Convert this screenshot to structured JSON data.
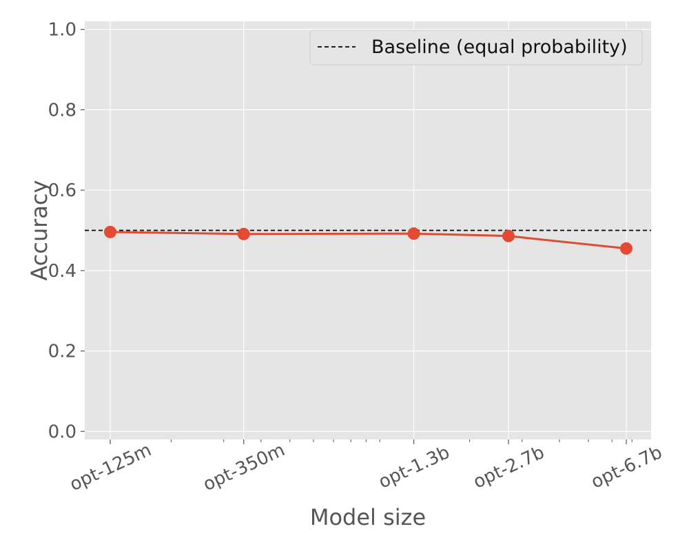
{
  "chart_data": {
    "type": "line",
    "xlabel": "Model size",
    "ylabel": "Accuracy",
    "x_scale": "log",
    "ylim": [
      -0.02,
      1.02
    ],
    "y_ticks": [
      "0.0",
      "0.2",
      "0.4",
      "0.6",
      "0.8",
      "1.0"
    ],
    "y_tick_values": [
      0.0,
      0.2,
      0.4,
      0.6,
      0.8,
      1.0
    ],
    "grid": true,
    "legend_position": "top-right",
    "baseline": {
      "label": "Baseline (equal probability)",
      "value": 0.5,
      "color": "#000000",
      "style": "dashed"
    },
    "categories": [
      "opt-125m",
      "opt-350m",
      "opt-1.3b",
      "opt-2.7b",
      "opt-6.7b"
    ],
    "parameters_billions": [
      0.125,
      0.35,
      1.3,
      2.7,
      6.7
    ],
    "series": [
      {
        "color": "#E24A33",
        "values": [
          0.496,
          0.491,
          0.492,
          0.486,
          0.455
        ]
      }
    ],
    "background": "#E5E5E5",
    "grid_color": "#FFFFFF"
  }
}
